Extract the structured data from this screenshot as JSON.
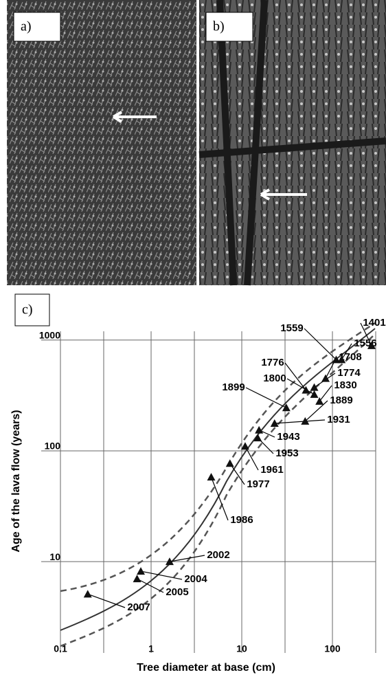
{
  "panels": [
    {
      "label": "a)"
    },
    {
      "label": "b)"
    },
    {
      "label": "c)"
    }
  ],
  "chart_data": {
    "type": "scatter",
    "xlabel": "Tree diameter at base (cm)",
    "ylabel": "Age of the lava flow (years)",
    "x_log": true,
    "y_log": true,
    "grid": true,
    "color": "#111111",
    "x": [
      0.2,
      0.7,
      0.77,
      1.6,
      4.6,
      7.4,
      10.9,
      15,
      15.5,
      23,
      31,
      50,
      72,
      63,
      63,
      51,
      84,
      110,
      126,
      270
    ],
    "values": [
      5.1,
      7,
      8.2,
      10,
      58,
      77,
      110,
      131,
      154,
      177,
      245,
      185,
      280,
      323,
      374,
      353,
      450,
      665,
      665,
      890
    ],
    "point_labels": [
      "2007",
      "2005",
      "2004",
      "2002",
      "1986",
      "1977",
      "1961",
      "1953",
      "1943",
      "1931",
      "1899",
      "1889",
      "1830",
      "1800",
      "1774",
      "1776",
      "1708",
      "1559",
      "1556",
      "1401"
    ],
    "xlim": [
      0.1,
      300
    ],
    "ylim": [
      1.5,
      1200
    ],
    "xticks": [
      0.1,
      1,
      10,
      100
    ],
    "yticks": [
      10,
      100,
      1000
    ],
    "x_minor_grid": [
      0.3,
      3,
      30,
      300
    ]
  }
}
